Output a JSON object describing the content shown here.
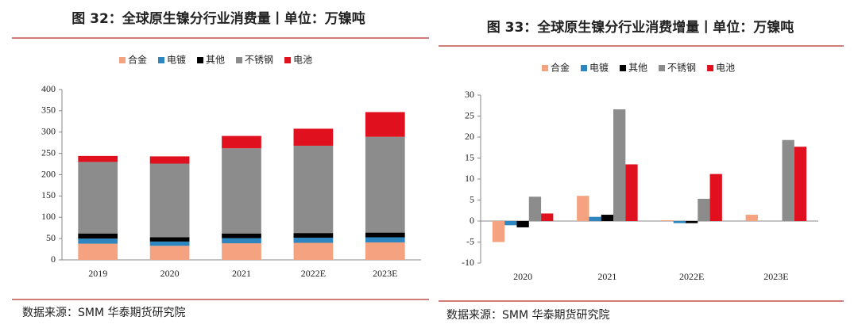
{
  "chart_data": [
    {
      "type": "stacked_bar",
      "title": "图 32：全球原生镍分行业消费量丨单位：万镍吨",
      "source": "数据来源：SMM 华泰期货研究院",
      "categories": [
        "2019",
        "2020",
        "2021",
        "2022E",
        "2023E"
      ],
      "series": [
        {
          "name": "合金",
          "color": "#f4a27f",
          "values": [
            38,
            33,
            39,
            40,
            41
          ]
        },
        {
          "name": "电镀",
          "color": "#2e86c1",
          "values": [
            12,
            10,
            12,
            12,
            12
          ]
        },
        {
          "name": "其他",
          "color": "#000000",
          "values": [
            12,
            10,
            11,
            11,
            11
          ]
        },
        {
          "name": "不锈钢",
          "color": "#8c8c8c",
          "values": [
            168,
            173,
            200,
            205,
            225
          ]
        },
        {
          "name": "电池",
          "color": "#e0101e",
          "values": [
            14,
            17,
            29,
            40,
            58
          ]
        }
      ],
      "ylim": [
        0,
        400
      ],
      "yticks": [
        0,
        50,
        100,
        150,
        200,
        250,
        300,
        350,
        400
      ]
    },
    {
      "type": "grouped_bar",
      "title": "图 33：全球原生镍分行业消费增量丨单位：万镍吨",
      "source": "数据来源：SMM 华泰期货研究院",
      "categories": [
        "2020",
        "2021",
        "2022E",
        "2023E"
      ],
      "series": [
        {
          "name": "合金",
          "color": "#f4a27f",
          "values": [
            -5,
            6,
            0.2,
            1.5
          ]
        },
        {
          "name": "电镀",
          "color": "#2e86c1",
          "values": [
            -1,
            1,
            -0.5,
            0
          ]
        },
        {
          "name": "其他",
          "color": "#000000",
          "values": [
            -1.5,
            1.5,
            -0.5,
            0
          ]
        },
        {
          "name": "不锈钢",
          "color": "#8c8c8c",
          "values": [
            5.8,
            26.6,
            5.3,
            19.3
          ]
        },
        {
          "name": "电池",
          "color": "#e0101e",
          "values": [
            1.8,
            13.5,
            11.2,
            17.7
          ]
        }
      ],
      "ylim": [
        -10,
        30
      ],
      "yticks": [
        -10,
        -5,
        0,
        5,
        10,
        15,
        20,
        25,
        30
      ]
    }
  ]
}
